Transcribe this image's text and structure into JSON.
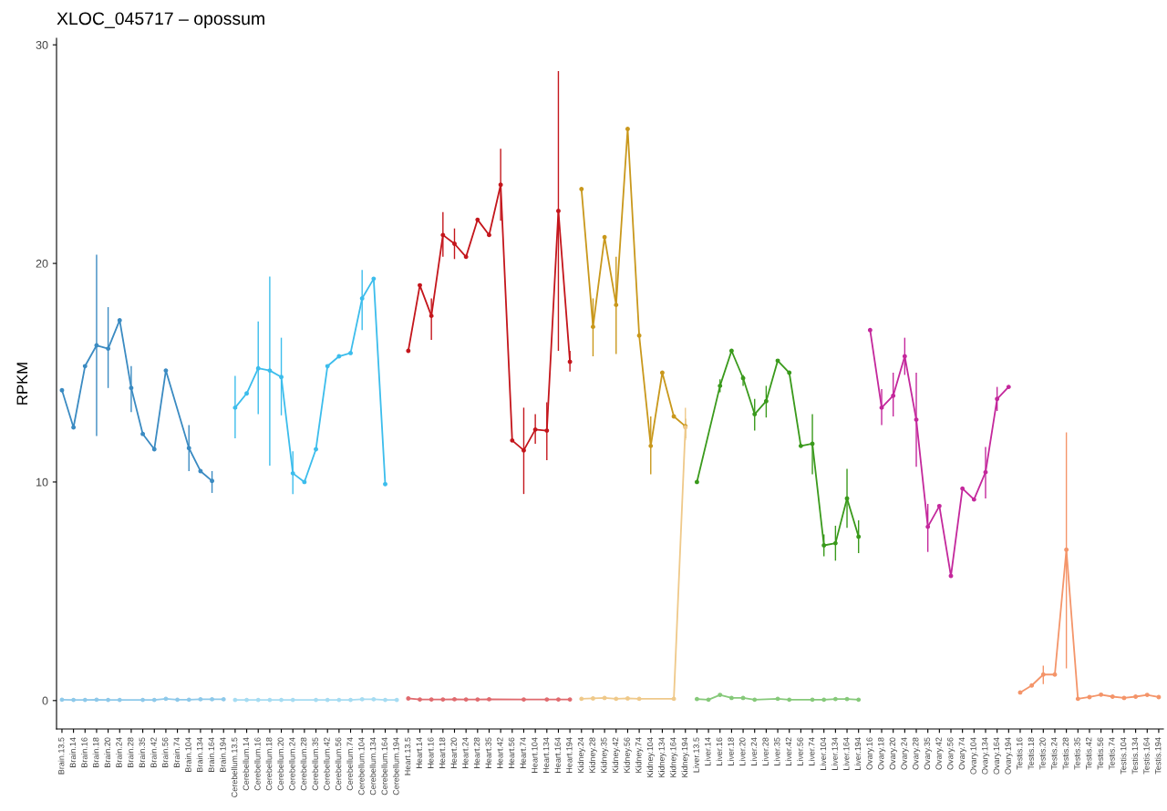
{
  "chart_data": {
    "type": "line",
    "title": "XLOC_045717 – opossum",
    "ylabel": "RPKM",
    "categories": [
      "Brain.13.5",
      "Brain.14",
      "Brain.16",
      "Brain.18",
      "Brain.20",
      "Brain.24",
      "Brain.28",
      "Brain.35",
      "Brain.42",
      "Brain.56",
      "Brain.74",
      "Brain.104",
      "Brain.134",
      "Brain.164",
      "Brain.194",
      "Cerebellum.13.5",
      "Cerebellum.14",
      "Cerebellum.16",
      "Cerebellum.18",
      "Cerebellum.20",
      "Cerebellum.24",
      "Cerebellum.28",
      "Cerebellum.35",
      "Cerebellum.42",
      "Cerebellum.56",
      "Cerebellum.74",
      "Cerebellum.104",
      "Cerebellum.134",
      "Cerebellum.164",
      "Cerebellum.194",
      "Heart.13.5",
      "Heart.14",
      "Heart.16",
      "Heart.18",
      "Heart.20",
      "Heart.24",
      "Heart.28",
      "Heart.35",
      "Heart.42",
      "Heart.56",
      "Heart.74",
      "Heart.104",
      "Heart.134",
      "Heart.164",
      "Heart.194",
      "Kidney.24",
      "Kidney.28",
      "Kidney.35",
      "Kidney.42",
      "Kidney.56",
      "Kidney.74",
      "Kidney.104",
      "Kidney.134",
      "Kidney.164",
      "Kidney.194",
      "Liver.13.5",
      "Liver.14",
      "Liver.16",
      "Liver.18",
      "Liver.20",
      "Liver.24",
      "Liver.28",
      "Liver.35",
      "Liver.42",
      "Liver.56",
      "Liver.74",
      "Liver.104",
      "Liver.134",
      "Liver.164",
      "Liver.194",
      "Ovary.16",
      "Ovary.18",
      "Ovary.20",
      "Ovary.24",
      "Ovary.28",
      "Ovary.35",
      "Ovary.42",
      "Ovary.56",
      "Ovary.74",
      "Ovary.104",
      "Ovary.134",
      "Ovary.164",
      "Ovary.194",
      "Testis.16",
      "Testis.18",
      "Testis.20",
      "Testis.24",
      "Testis.28",
      "Testis.35",
      "Testis.42",
      "Testis.56",
      "Testis.74",
      "Testis.104",
      "Testis.134",
      "Testis.164",
      "Testis.194"
    ],
    "ylim": [
      -1.3,
      30.3
    ],
    "yticks": [
      0,
      10,
      20,
      30
    ],
    "grid": false,
    "marker": "circle",
    "line_style": "solid",
    "series": [
      {
        "color": "#3b8bc2",
        "values": [
          14.2,
          12.5,
          15.3,
          16.25,
          16.1,
          17.4,
          14.3,
          12.2,
          11.5,
          15.1,
          null,
          11.55,
          10.5,
          10.05,
          null,
          null,
          null,
          null,
          null,
          null,
          null,
          null,
          null,
          null,
          null,
          null,
          null,
          null,
          null,
          null,
          null,
          null,
          null,
          null,
          null,
          null,
          null,
          null,
          null,
          null,
          null,
          null,
          null,
          null,
          null,
          null,
          null,
          null,
          null,
          null,
          null,
          null,
          null,
          null,
          null,
          null,
          null,
          null,
          null,
          null,
          null,
          null,
          null,
          null,
          null,
          null,
          null,
          null,
          null,
          null,
          null,
          null,
          null,
          null,
          null,
          null,
          null,
          null,
          null,
          null,
          null,
          null,
          null,
          null,
          null,
          null,
          null,
          null,
          null,
          null,
          null,
          null,
          null,
          null,
          null,
          null
        ],
        "errors": [
          null,
          null,
          null,
          [
            12.1,
            20.4
          ],
          [
            14.3,
            18.0
          ],
          null,
          [
            13.2,
            15.3
          ],
          null,
          null,
          null,
          null,
          [
            10.5,
            12.6
          ],
          null,
          [
            9.5,
            10.5
          ],
          null,
          null,
          null,
          null,
          null,
          null,
          null,
          null,
          null,
          null,
          null,
          null,
          null,
          null,
          null,
          null,
          null,
          null,
          null,
          null,
          null,
          null,
          null,
          null,
          null,
          null,
          null,
          null,
          null,
          null,
          null,
          null,
          null,
          null,
          null,
          null,
          null,
          null,
          null,
          null,
          null,
          null,
          null,
          null,
          null,
          null,
          null,
          null,
          null,
          null,
          null,
          null,
          null,
          null,
          null,
          null,
          null,
          null,
          null,
          null,
          null,
          null,
          null,
          null,
          null,
          null,
          null,
          null,
          null,
          null,
          null,
          null,
          null,
          null,
          null,
          null,
          null,
          null,
          null,
          null,
          null,
          null
        ]
      },
      {
        "color": "#8ec9ea",
        "values": [
          0.04,
          0.03,
          0.03,
          0.04,
          0.03,
          0.03,
          null,
          0.03,
          0.03,
          0.08,
          0.04,
          0.04,
          0.06,
          0.06,
          0.06,
          null,
          null,
          null,
          null,
          null,
          null,
          null,
          null,
          null,
          null,
          null,
          null,
          null,
          null,
          null,
          null,
          null,
          null,
          null,
          null,
          null,
          null,
          null,
          null,
          null,
          null,
          null,
          null,
          null,
          null,
          null,
          null,
          null,
          null,
          null,
          null,
          null,
          null,
          null,
          null,
          null,
          null,
          null,
          null,
          null,
          null,
          null,
          null,
          null,
          null,
          null,
          null,
          null,
          null,
          null,
          null,
          null,
          null,
          null,
          null,
          null,
          null,
          null,
          null,
          null,
          null,
          null,
          null,
          null,
          null,
          null,
          null,
          null,
          null,
          null,
          null,
          null,
          null,
          null,
          null,
          null
        ]
      },
      {
        "color": "#3cbdec",
        "values": [
          null,
          null,
          null,
          null,
          null,
          null,
          null,
          null,
          null,
          null,
          null,
          null,
          null,
          null,
          null,
          13.4,
          14.05,
          15.2,
          15.1,
          14.8,
          10.4,
          10.0,
          11.5,
          15.3,
          15.75,
          15.9,
          18.4,
          19.3,
          9.9,
          null,
          null,
          null,
          null,
          null,
          null,
          null,
          null,
          null,
          null,
          null,
          null,
          null,
          null,
          null,
          null,
          null,
          null,
          null,
          null,
          null,
          null,
          null,
          null,
          null,
          null,
          null,
          null,
          null,
          null,
          null,
          null,
          null,
          null,
          null,
          null,
          null,
          null,
          null,
          null,
          null,
          null,
          null,
          null,
          null,
          null,
          null,
          null,
          null,
          null,
          null,
          null,
          null,
          null,
          null,
          null,
          null,
          null,
          null,
          null,
          null,
          null,
          null,
          null,
          null,
          null,
          null
        ],
        "errors": [
          null,
          null,
          null,
          null,
          null,
          null,
          null,
          null,
          null,
          null,
          null,
          null,
          null,
          null,
          null,
          [
            12.0,
            14.85
          ],
          null,
          [
            13.1,
            17.35
          ],
          [
            10.75,
            19.4
          ],
          [
            13.05,
            16.6
          ],
          [
            9.45,
            11.4
          ],
          null,
          null,
          null,
          null,
          null,
          [
            16.95,
            19.7
          ],
          null,
          null,
          null,
          null,
          null,
          null,
          null,
          null,
          null,
          null,
          null,
          null,
          null,
          null,
          null,
          null,
          null,
          null,
          null,
          null,
          null,
          null,
          null,
          null,
          null,
          null,
          null,
          null,
          null,
          null,
          null,
          null,
          null,
          null,
          null,
          null,
          null,
          null,
          null,
          null,
          null,
          null,
          null,
          null,
          null,
          null,
          null,
          null,
          null,
          null,
          null,
          null,
          null,
          null,
          null,
          null,
          null,
          null,
          null,
          null,
          null,
          null,
          null,
          null,
          null,
          null,
          null,
          null,
          null
        ]
      },
      {
        "color": "#a6dcf2",
        "values": [
          null,
          null,
          null,
          null,
          null,
          null,
          null,
          null,
          null,
          null,
          null,
          null,
          null,
          null,
          null,
          0.03,
          0.03,
          0.03,
          0.03,
          0.03,
          0.03,
          null,
          0.03,
          0.03,
          0.03,
          0.03,
          0.06,
          0.06,
          0.03,
          0.03,
          null,
          null,
          null,
          null,
          null,
          null,
          null,
          null,
          null,
          null,
          null,
          null,
          null,
          null,
          null,
          null,
          null,
          null,
          null,
          null,
          null,
          null,
          null,
          null,
          null,
          null,
          null,
          null,
          null,
          null,
          null,
          null,
          null,
          null,
          null,
          null,
          null,
          null,
          null,
          null,
          null,
          null,
          null,
          null,
          null,
          null,
          null,
          null,
          null,
          null,
          null,
          null,
          null,
          null,
          null,
          null,
          null,
          null,
          null,
          null,
          null,
          null,
          null,
          null,
          null,
          null
        ]
      },
      {
        "color": "#c4161c",
        "values": [
          null,
          null,
          null,
          null,
          null,
          null,
          null,
          null,
          null,
          null,
          null,
          null,
          null,
          null,
          null,
          null,
          null,
          null,
          null,
          null,
          null,
          null,
          null,
          null,
          null,
          null,
          null,
          null,
          null,
          null,
          16.0,
          19.0,
          17.6,
          21.3,
          20.9,
          20.3,
          22.0,
          21.3,
          23.6,
          11.9,
          11.45,
          12.4,
          12.35,
          22.4,
          15.5,
          null,
          null,
          null,
          null,
          null,
          null,
          null,
          null,
          null,
          null,
          null,
          null,
          null,
          null,
          null,
          null,
          null,
          null,
          null,
          null,
          null,
          null,
          null,
          null,
          null,
          null,
          null,
          null,
          null,
          null,
          null,
          null,
          null,
          null,
          null,
          null,
          null,
          null,
          null,
          null,
          null,
          null,
          null,
          null,
          null,
          null,
          null,
          null,
          null,
          null,
          null
        ],
        "errors": [
          null,
          null,
          null,
          null,
          null,
          null,
          null,
          null,
          null,
          null,
          null,
          null,
          null,
          null,
          null,
          null,
          null,
          null,
          null,
          null,
          null,
          null,
          null,
          null,
          null,
          null,
          null,
          null,
          null,
          null,
          null,
          null,
          [
            16.5,
            18.4
          ],
          [
            20.3,
            22.35
          ],
          [
            20.2,
            21.6
          ],
          null,
          null,
          null,
          [
            21.95,
            25.25
          ],
          null,
          [
            9.45,
            13.4
          ],
          [
            11.75,
            13.1
          ],
          [
            11.0,
            13.65
          ],
          [
            16.0,
            28.8
          ],
          [
            15.05,
            16.0
          ],
          null,
          null,
          null,
          null,
          null,
          null,
          null,
          null,
          null,
          null,
          null,
          null,
          null,
          null,
          null,
          null,
          null,
          null,
          null,
          null,
          null,
          null,
          null,
          null,
          null,
          null,
          null,
          null,
          null,
          null,
          null,
          null,
          null,
          null,
          null,
          null,
          null,
          null,
          null,
          null,
          null,
          null,
          null,
          null,
          null,
          null,
          null,
          null,
          null,
          null,
          null
        ]
      },
      {
        "color": "#e06a6e",
        "values": [
          null,
          null,
          null,
          null,
          null,
          null,
          null,
          null,
          null,
          null,
          null,
          null,
          null,
          null,
          null,
          null,
          null,
          null,
          null,
          null,
          null,
          null,
          null,
          null,
          null,
          null,
          null,
          null,
          null,
          null,
          0.1,
          0.05,
          0.05,
          0.05,
          0.06,
          0.05,
          0.05,
          0.06,
          null,
          null,
          0.05,
          null,
          0.05,
          0.05,
          0.05,
          null,
          null,
          null,
          null,
          null,
          null,
          null,
          null,
          null,
          null,
          null,
          null,
          null,
          null,
          null,
          null,
          null,
          null,
          null,
          null,
          null,
          null,
          null,
          null,
          null,
          null,
          null,
          null,
          null,
          null,
          null,
          null,
          null,
          null,
          null,
          null,
          null,
          null,
          null,
          null,
          null,
          null,
          null,
          null,
          null,
          null,
          null,
          null,
          null,
          null,
          null
        ]
      },
      {
        "color": "#c9981c",
        "values": [
          null,
          null,
          null,
          null,
          null,
          null,
          null,
          null,
          null,
          null,
          null,
          null,
          null,
          null,
          null,
          null,
          null,
          null,
          null,
          null,
          null,
          null,
          null,
          null,
          null,
          null,
          null,
          null,
          null,
          null,
          null,
          null,
          null,
          null,
          null,
          null,
          null,
          null,
          null,
          null,
          null,
          null,
          null,
          null,
          null,
          23.4,
          17.1,
          21.2,
          18.1,
          26.15,
          16.7,
          11.65,
          15.0,
          13.0,
          12.55,
          null,
          null,
          null,
          null,
          null,
          null,
          null,
          null,
          null,
          null,
          null,
          null,
          null,
          null,
          null,
          null,
          null,
          null,
          null,
          null,
          null,
          null,
          null,
          null,
          null,
          null,
          null,
          null,
          null,
          null,
          null,
          null,
          null,
          null,
          null,
          null,
          null,
          null,
          null,
          null,
          null
        ],
        "errors": [
          null,
          null,
          null,
          null,
          null,
          null,
          null,
          null,
          null,
          null,
          null,
          null,
          null,
          null,
          null,
          null,
          null,
          null,
          null,
          null,
          null,
          null,
          null,
          null,
          null,
          null,
          null,
          null,
          null,
          null,
          null,
          null,
          null,
          null,
          null,
          null,
          null,
          null,
          null,
          null,
          null,
          null,
          null,
          null,
          null,
          null,
          [
            15.75,
            18.4
          ],
          null,
          [
            15.85,
            20.3
          ],
          null,
          null,
          [
            10.35,
            13.0
          ],
          null,
          null,
          [
            12.0,
            12.9
          ],
          null,
          null,
          null,
          null,
          null,
          null,
          null,
          null,
          null,
          null,
          null,
          null,
          null,
          null,
          null,
          null,
          null,
          null,
          null,
          null,
          null,
          null,
          null,
          null,
          null,
          null,
          null,
          null,
          null,
          null,
          null,
          null,
          null,
          null,
          null,
          null,
          null,
          null,
          null,
          null,
          null
        ]
      },
      {
        "color": "#efc98a",
        "values": [
          null,
          null,
          null,
          null,
          null,
          null,
          null,
          null,
          null,
          null,
          null,
          null,
          null,
          null,
          null,
          null,
          null,
          null,
          null,
          null,
          null,
          null,
          null,
          null,
          null,
          null,
          null,
          null,
          null,
          null,
          null,
          null,
          null,
          null,
          null,
          null,
          null,
          null,
          null,
          null,
          null,
          null,
          null,
          null,
          null,
          0.08,
          0.1,
          0.12,
          0.08,
          0.1,
          0.08,
          null,
          null,
          0.08,
          12.5,
          null,
          null,
          null,
          null,
          null,
          null,
          null,
          null,
          null,
          null,
          null,
          null,
          null,
          null,
          null,
          null,
          null,
          null,
          null,
          null,
          null,
          null,
          null,
          null,
          null,
          null,
          null,
          null,
          null,
          null,
          null,
          null,
          null,
          null,
          null,
          null,
          null,
          null,
          null,
          null,
          null
        ],
        "errors": [
          null,
          null,
          null,
          null,
          null,
          null,
          null,
          null,
          null,
          null,
          null,
          null,
          null,
          null,
          null,
          null,
          null,
          null,
          null,
          null,
          null,
          null,
          null,
          null,
          null,
          null,
          null,
          null,
          null,
          null,
          null,
          null,
          null,
          null,
          null,
          null,
          null,
          null,
          null,
          null,
          null,
          null,
          null,
          null,
          null,
          null,
          null,
          null,
          null,
          null,
          null,
          null,
          null,
          null,
          [
            11.9,
            13.4
          ],
          null,
          null,
          null,
          null,
          null,
          null,
          null,
          null,
          null,
          null,
          null,
          null,
          null,
          null,
          null,
          null,
          null,
          null,
          null,
          null,
          null,
          null,
          null,
          null,
          null,
          null,
          null,
          null,
          null,
          null,
          null,
          null,
          null,
          null,
          null,
          null,
          null,
          null,
          null,
          null,
          null
        ]
      },
      {
        "color": "#3a9a1c",
        "values": [
          null,
          null,
          null,
          null,
          null,
          null,
          null,
          null,
          null,
          null,
          null,
          null,
          null,
          null,
          null,
          null,
          null,
          null,
          null,
          null,
          null,
          null,
          null,
          null,
          null,
          null,
          null,
          null,
          null,
          null,
          null,
          null,
          null,
          null,
          null,
          null,
          null,
          null,
          null,
          null,
          null,
          null,
          null,
          null,
          null,
          null,
          null,
          null,
          null,
          null,
          null,
          null,
          null,
          null,
          null,
          10.0,
          null,
          14.4,
          16.0,
          14.75,
          13.1,
          13.7,
          15.55,
          15.0,
          11.65,
          11.75,
          7.1,
          7.2,
          9.25,
          7.5,
          null,
          null,
          null,
          null,
          null,
          null,
          null,
          null,
          null,
          null,
          null,
          null,
          null,
          null,
          null,
          null,
          null,
          null,
          null,
          null,
          null,
          null,
          null,
          null,
          null,
          null
        ],
        "errors": [
          null,
          null,
          null,
          null,
          null,
          null,
          null,
          null,
          null,
          null,
          null,
          null,
          null,
          null,
          null,
          null,
          null,
          null,
          null,
          null,
          null,
          null,
          null,
          null,
          null,
          null,
          null,
          null,
          null,
          null,
          null,
          null,
          null,
          null,
          null,
          null,
          null,
          null,
          null,
          null,
          null,
          null,
          null,
          null,
          null,
          null,
          null,
          null,
          null,
          null,
          null,
          null,
          null,
          null,
          null,
          null,
          null,
          [
            14.1,
            14.7
          ],
          null,
          [
            14.4,
            14.9
          ],
          [
            12.35,
            13.8
          ],
          [
            12.95,
            14.4
          ],
          null,
          null,
          null,
          [
            10.35,
            13.1
          ],
          [
            6.6,
            7.6
          ],
          [
            6.4,
            8.0
          ],
          [
            7.9,
            10.6
          ],
          [
            6.75,
            8.25
          ],
          null,
          null,
          null,
          null,
          null,
          null,
          null,
          null,
          null,
          null,
          null,
          null,
          null,
          null,
          null,
          null,
          null,
          null,
          null,
          null,
          null,
          null,
          null,
          null,
          null,
          null
        ]
      },
      {
        "color": "#86c97a",
        "values": [
          null,
          null,
          null,
          null,
          null,
          null,
          null,
          null,
          null,
          null,
          null,
          null,
          null,
          null,
          null,
          null,
          null,
          null,
          null,
          null,
          null,
          null,
          null,
          null,
          null,
          null,
          null,
          null,
          null,
          null,
          null,
          null,
          null,
          null,
          null,
          null,
          null,
          null,
          null,
          null,
          null,
          null,
          null,
          null,
          null,
          null,
          null,
          null,
          null,
          null,
          null,
          null,
          null,
          null,
          null,
          0.07,
          0.04,
          0.26,
          0.12,
          0.12,
          0.04,
          null,
          0.08,
          0.04,
          null,
          0.04,
          0.04,
          0.07,
          0.07,
          0.04,
          null,
          null,
          null,
          null,
          null,
          null,
          null,
          null,
          null,
          null,
          null,
          null,
          null,
          null,
          null,
          null,
          null,
          null,
          null,
          null,
          null,
          null,
          null,
          null,
          null,
          null
        ]
      },
      {
        "color": "#c4289c",
        "values": [
          null,
          null,
          null,
          null,
          null,
          null,
          null,
          null,
          null,
          null,
          null,
          null,
          null,
          null,
          null,
          null,
          null,
          null,
          null,
          null,
          null,
          null,
          null,
          null,
          null,
          null,
          null,
          null,
          null,
          null,
          null,
          null,
          null,
          null,
          null,
          null,
          null,
          null,
          null,
          null,
          null,
          null,
          null,
          null,
          null,
          null,
          null,
          null,
          null,
          null,
          null,
          null,
          null,
          null,
          null,
          null,
          null,
          null,
          null,
          null,
          null,
          null,
          null,
          null,
          null,
          null,
          null,
          null,
          null,
          null,
          16.95,
          13.4,
          13.95,
          15.75,
          12.85,
          7.95,
          8.9,
          5.7,
          9.7,
          9.2,
          10.45,
          13.8,
          14.35,
          null,
          null,
          null,
          null,
          null,
          null,
          null,
          null,
          null,
          null,
          null,
          null,
          null
        ],
        "errors": [
          null,
          null,
          null,
          null,
          null,
          null,
          null,
          null,
          null,
          null,
          null,
          null,
          null,
          null,
          null,
          null,
          null,
          null,
          null,
          null,
          null,
          null,
          null,
          null,
          null,
          null,
          null,
          null,
          null,
          null,
          null,
          null,
          null,
          null,
          null,
          null,
          null,
          null,
          null,
          null,
          null,
          null,
          null,
          null,
          null,
          null,
          null,
          null,
          null,
          null,
          null,
          null,
          null,
          null,
          null,
          null,
          null,
          null,
          null,
          null,
          null,
          null,
          null,
          null,
          null,
          null,
          null,
          null,
          null,
          null,
          null,
          [
            12.6,
            14.25
          ],
          [
            13.0,
            15.0
          ],
          [
            14.9,
            16.6
          ],
          [
            10.7,
            15.0
          ],
          [
            6.8,
            9.0
          ],
          null,
          null,
          null,
          null,
          [
            9.25,
            11.6
          ],
          [
            13.25,
            14.35
          ],
          null,
          null,
          null,
          null,
          null,
          null,
          null,
          null,
          null,
          null,
          null,
          null,
          null,
          null
        ]
      },
      {
        "color": "#f4956a",
        "values": [
          null,
          null,
          null,
          null,
          null,
          null,
          null,
          null,
          null,
          null,
          null,
          null,
          null,
          null,
          null,
          null,
          null,
          null,
          null,
          null,
          null,
          null,
          null,
          null,
          null,
          null,
          null,
          null,
          null,
          null,
          null,
          null,
          null,
          null,
          null,
          null,
          null,
          null,
          null,
          null,
          null,
          null,
          null,
          null,
          null,
          null,
          null,
          null,
          null,
          null,
          null,
          null,
          null,
          null,
          null,
          null,
          null,
          null,
          null,
          null,
          null,
          null,
          null,
          null,
          null,
          null,
          null,
          null,
          null,
          null,
          null,
          null,
          null,
          null,
          null,
          null,
          null,
          null,
          null,
          null,
          null,
          null,
          null,
          0.37,
          0.69,
          1.19,
          1.19,
          6.9,
          0.08,
          0.16,
          0.27,
          0.18,
          0.12,
          0.18,
          0.26,
          0.16
        ],
        "errors": [
          null,
          null,
          null,
          null,
          null,
          null,
          null,
          null,
          null,
          null,
          null,
          null,
          null,
          null,
          null,
          null,
          null,
          null,
          null,
          null,
          null,
          null,
          null,
          null,
          null,
          null,
          null,
          null,
          null,
          null,
          null,
          null,
          null,
          null,
          null,
          null,
          null,
          null,
          null,
          null,
          null,
          null,
          null,
          null,
          null,
          null,
          null,
          null,
          null,
          null,
          null,
          null,
          null,
          null,
          null,
          null,
          null,
          null,
          null,
          null,
          null,
          null,
          null,
          null,
          null,
          null,
          null,
          null,
          null,
          null,
          null,
          null,
          null,
          null,
          null,
          null,
          null,
          null,
          null,
          null,
          null,
          null,
          null,
          null,
          null,
          [
            0.75,
            1.6
          ],
          null,
          [
            1.47,
            12.27
          ],
          null,
          null,
          null,
          null,
          null,
          null,
          null,
          null
        ]
      }
    ]
  }
}
